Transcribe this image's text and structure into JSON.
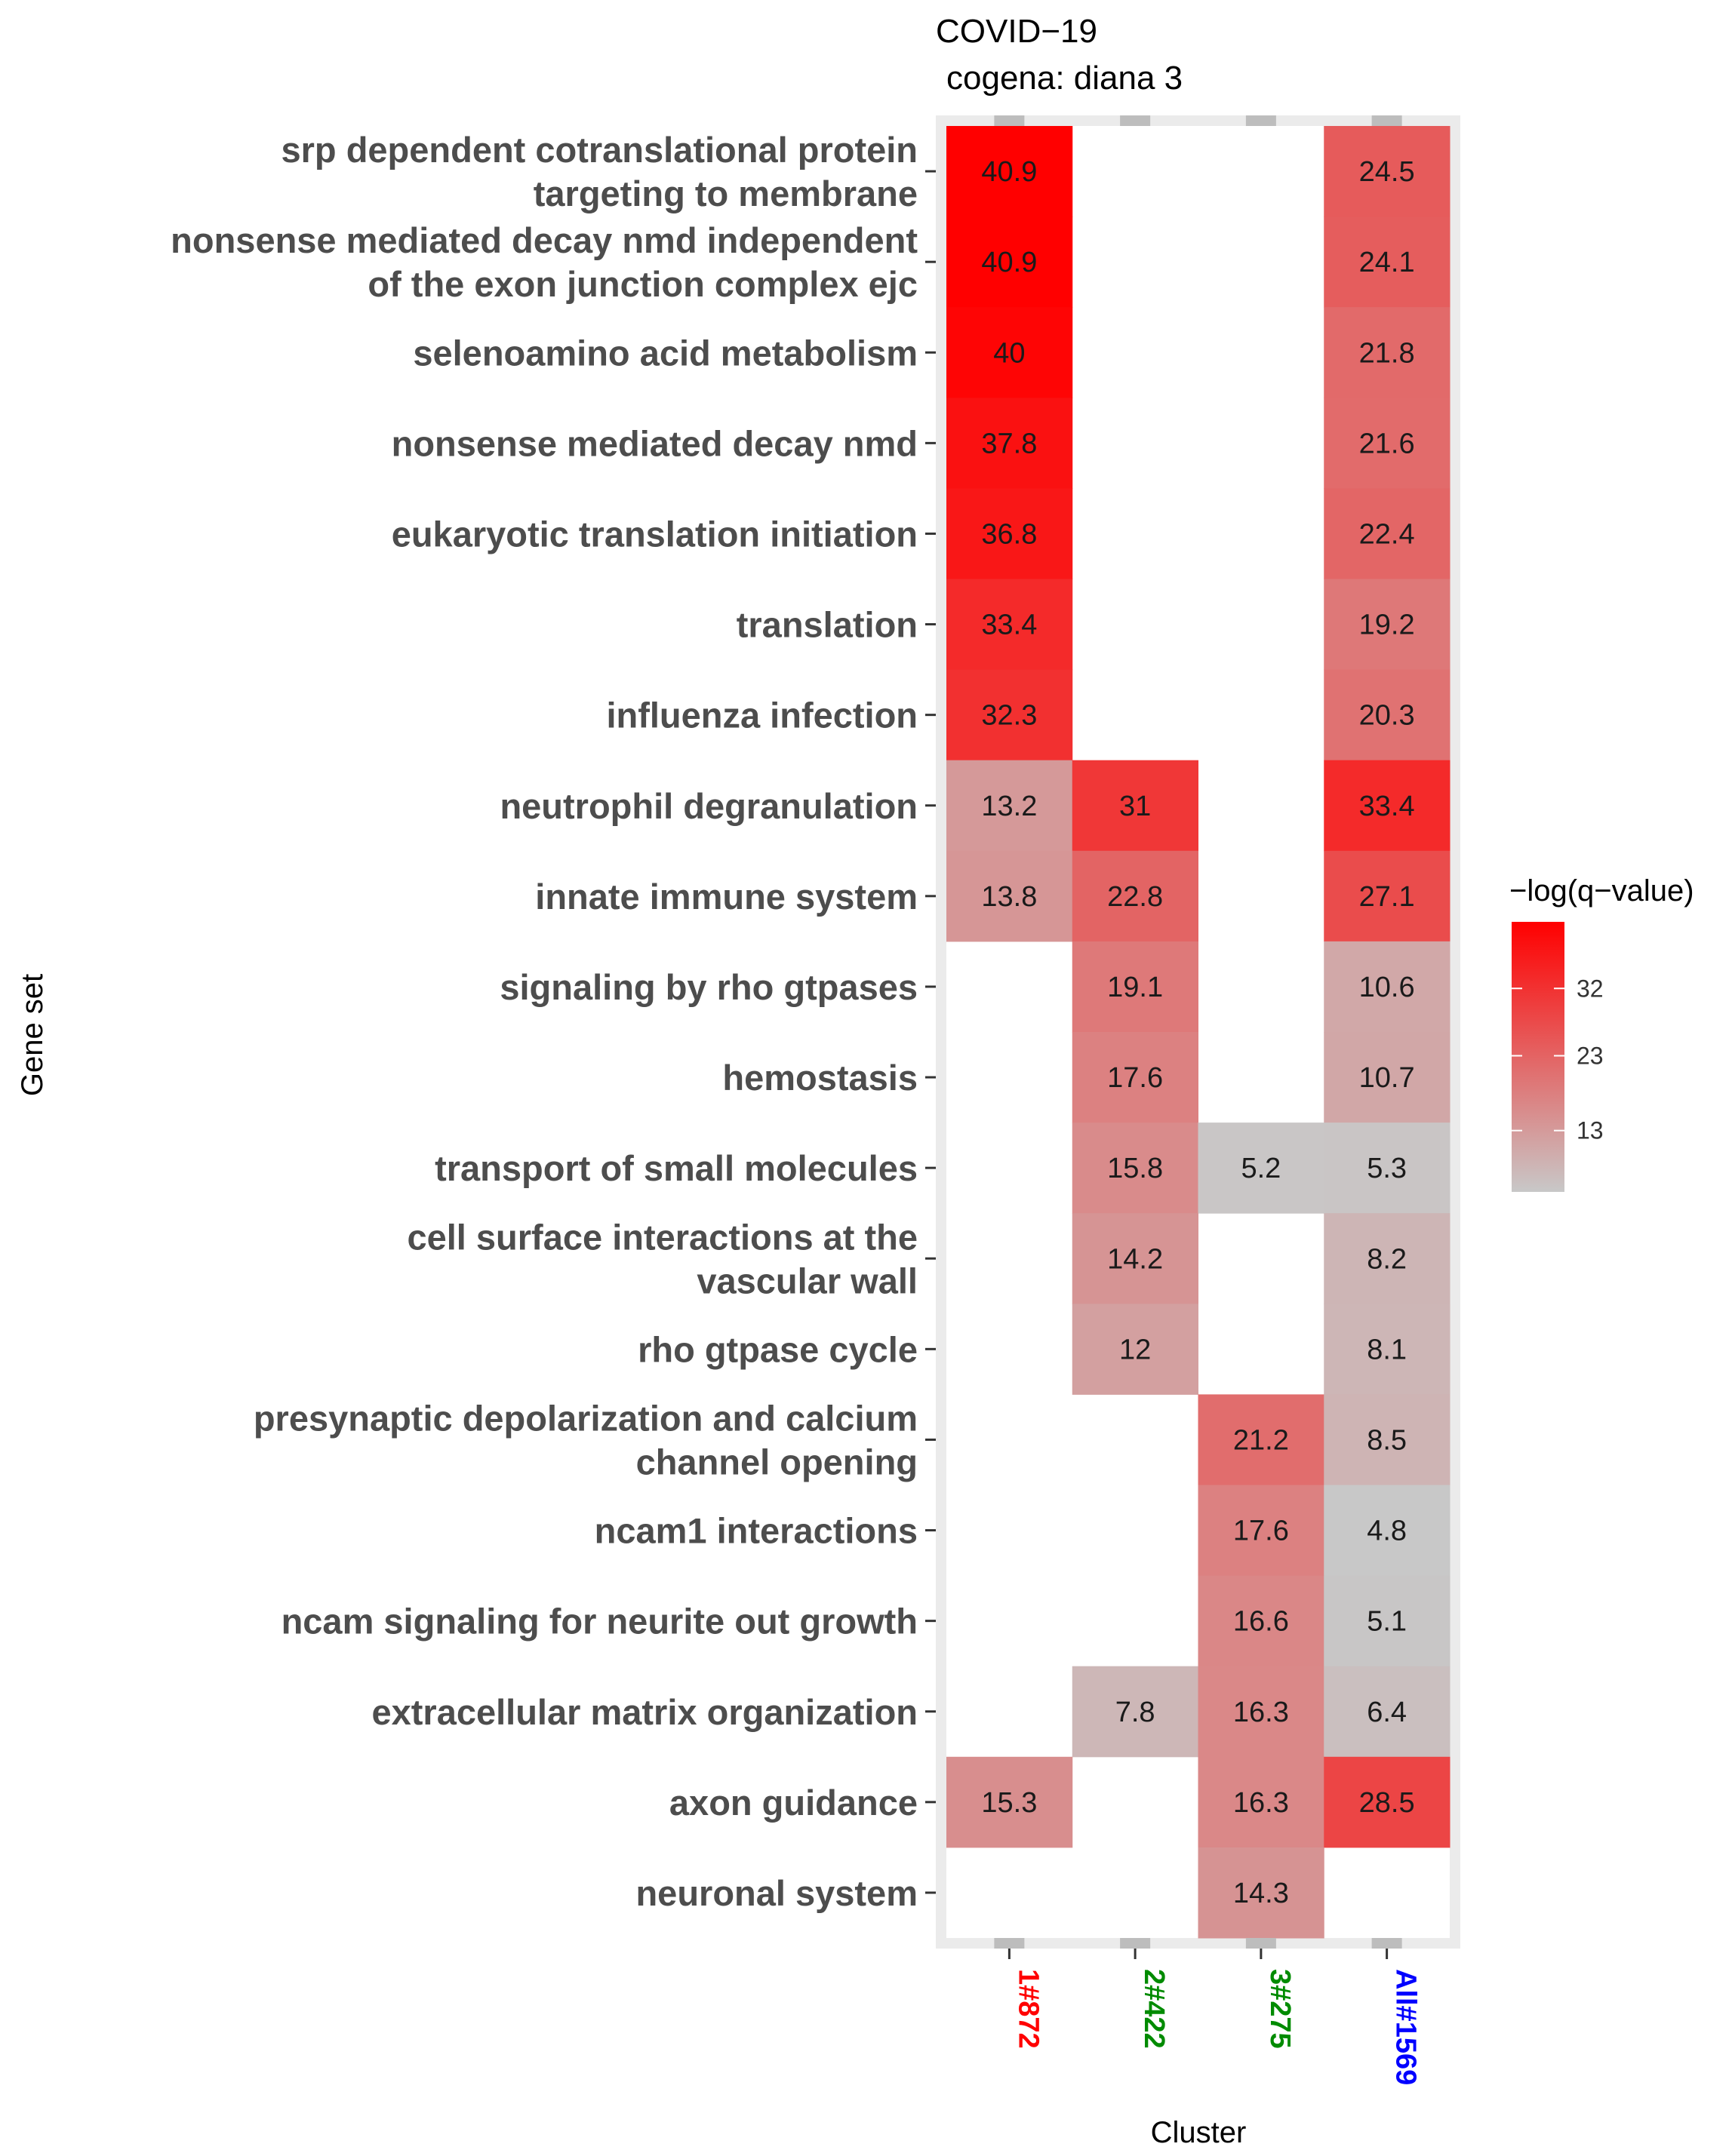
{
  "chart_data": {
    "type": "heatmap",
    "title": "COVID−19",
    "subtitle": "cogena: diana 3",
    "xlabel": "Cluster",
    "ylabel": "Gene set",
    "legend_title": "−log(q−value)",
    "legend_placement": "right",
    "legend_ticks": [
      13,
      23,
      32
    ],
    "color_low": "#c8c8c8",
    "color_high": "#ff0000",
    "value_range": [
      4.8,
      40.9
    ],
    "columns": [
      {
        "label": "1#872",
        "color": "#ff0000"
      },
      {
        "label": "2#422",
        "color": "#008b00"
      },
      {
        "label": "3#275",
        "color": "#008b00"
      },
      {
        "label": "All#1569",
        "color": "#0000ff"
      }
    ],
    "rows": [
      {
        "label": [
          "srp dependent cotranslational protein",
          "targeting to membrane"
        ],
        "values": [
          40.9,
          null,
          null,
          24.5
        ]
      },
      {
        "label": [
          "nonsense mediated decay nmd independent",
          "of the exon junction complex ejc"
        ],
        "values": [
          40.9,
          null,
          null,
          24.1
        ]
      },
      {
        "label": [
          "selenoamino acid metabolism"
        ],
        "values": [
          40,
          null,
          null,
          21.8
        ]
      },
      {
        "label": [
          "nonsense mediated decay nmd"
        ],
        "values": [
          37.8,
          null,
          null,
          21.6
        ]
      },
      {
        "label": [
          "eukaryotic translation initiation"
        ],
        "values": [
          36.8,
          null,
          null,
          22.4
        ]
      },
      {
        "label": [
          "translation"
        ],
        "values": [
          33.4,
          null,
          null,
          19.2
        ]
      },
      {
        "label": [
          "influenza infection"
        ],
        "values": [
          32.3,
          null,
          null,
          20.3
        ]
      },
      {
        "label": [
          "neutrophil degranulation"
        ],
        "values": [
          13.2,
          31,
          null,
          33.4
        ]
      },
      {
        "label": [
          "innate immune system"
        ],
        "values": [
          13.8,
          22.8,
          null,
          27.1
        ]
      },
      {
        "label": [
          "signaling by rho gtpases"
        ],
        "values": [
          null,
          19.1,
          null,
          10.6
        ]
      },
      {
        "label": [
          "hemostasis"
        ],
        "values": [
          null,
          17.6,
          null,
          10.7
        ]
      },
      {
        "label": [
          "transport of small molecules"
        ],
        "values": [
          null,
          15.8,
          5.2,
          5.3
        ]
      },
      {
        "label": [
          "cell surface interactions at the",
          "vascular wall"
        ],
        "values": [
          null,
          14.2,
          null,
          8.2
        ]
      },
      {
        "label": [
          "rho gtpase cycle"
        ],
        "values": [
          null,
          12,
          null,
          8.1
        ]
      },
      {
        "label": [
          "presynaptic depolarization and calcium",
          "channel opening"
        ],
        "values": [
          null,
          null,
          21.2,
          8.5
        ]
      },
      {
        "label": [
          "ncam1 interactions"
        ],
        "values": [
          null,
          null,
          17.6,
          4.8
        ]
      },
      {
        "label": [
          "ncam signaling for neurite out growth"
        ],
        "values": [
          null,
          null,
          16.6,
          5.1
        ]
      },
      {
        "label": [
          "extracellular matrix organization"
        ],
        "values": [
          null,
          7.8,
          16.3,
          6.4
        ]
      },
      {
        "label": [
          "axon guidance"
        ],
        "values": [
          15.3,
          null,
          16.3,
          28.5
        ]
      },
      {
        "label": [
          "neuronal system"
        ],
        "values": [
          null,
          null,
          14.3,
          null
        ]
      }
    ]
  }
}
